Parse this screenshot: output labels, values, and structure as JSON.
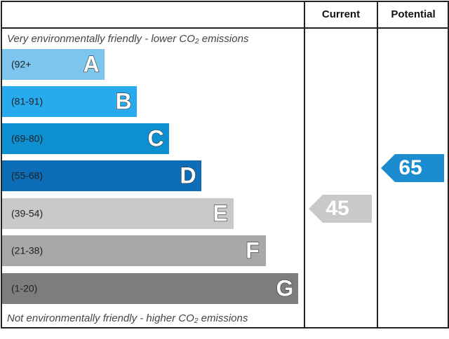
{
  "header": {
    "current": "Current",
    "potential": "Potential"
  },
  "top_note": "Very environmentally friendly - lower CO₂ emissions",
  "bottom_note": "Not environmentally friendly - higher CO₂ emissions",
  "bands": [
    {
      "range": "(92+",
      "letter": "A",
      "color": "#7cc6ee"
    },
    {
      "range": "(81-91)",
      "letter": "B",
      "color": "#27abee"
    },
    {
      "range": "(69-80)",
      "letter": "C",
      "color": "#0e8fd0"
    },
    {
      "range": "(55-68)",
      "letter": "D",
      "color": "#0d6db6"
    },
    {
      "range": "(39-54)",
      "letter": "E",
      "color": "#c9c9c9"
    },
    {
      "range": "(21-38)",
      "letter": "F",
      "color": "#a8a8a8"
    },
    {
      "range": "(1-20)",
      "letter": "G",
      "color": "#7d7d7d"
    }
  ],
  "current": {
    "value": "45",
    "color": "#c9c9c9"
  },
  "potential": {
    "value": "65",
    "color": "#1a8ccf"
  }
}
